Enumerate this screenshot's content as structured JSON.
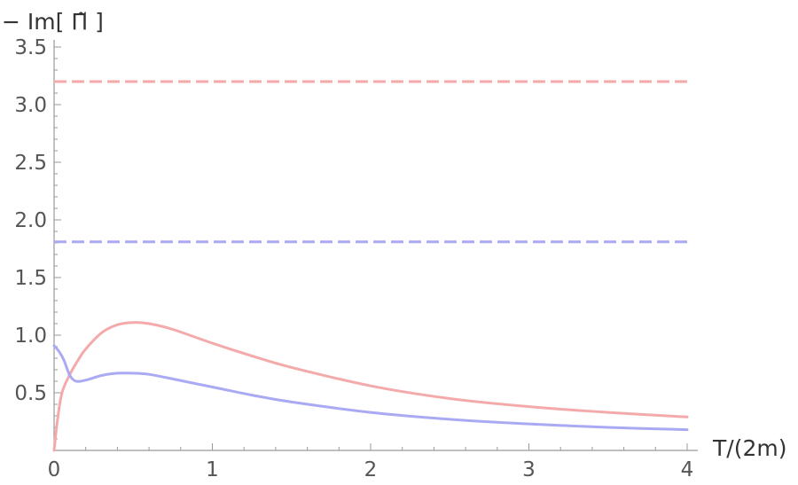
{
  "chart_data": {
    "type": "line",
    "title": "",
    "xlabel": "T/(2m)",
    "ylabel": "− Im[ Π̃ ]",
    "xlim": [
      0,
      4
    ],
    "ylim": [
      0.0,
      3.5
    ],
    "x_ticks": [
      "0",
      "1",
      "2",
      "3",
      "4"
    ],
    "y_ticks": [
      "0.5",
      "1.0",
      "1.5",
      "2.0",
      "2.5",
      "3.0",
      "3.5"
    ],
    "grid": false,
    "legend": "none",
    "colors": {
      "red": "#f4aaaa",
      "blue": "#aaaaf4",
      "axis": "#999999"
    },
    "series": [
      {
        "color": "red",
        "style": "dashed",
        "x": [
          0,
          4
        ],
        "y": [
          3.2,
          3.2
        ]
      },
      {
        "color": "blue",
        "style": "dashed",
        "x": [
          0,
          4
        ],
        "y": [
          1.81,
          1.81
        ]
      },
      {
        "color": "red",
        "style": "solid",
        "x": [
          0,
          0.02,
          0.05,
          0.1,
          0.15,
          0.2,
          0.3,
          0.4,
          0.5,
          0.6,
          0.75,
          1.0,
          1.25,
          1.5,
          2.0,
          2.5,
          3.0,
          3.5,
          4.0
        ],
        "y": [
          0.0,
          0.25,
          0.5,
          0.66,
          0.78,
          0.88,
          1.02,
          1.09,
          1.11,
          1.1,
          1.05,
          0.93,
          0.82,
          0.72,
          0.56,
          0.45,
          0.38,
          0.33,
          0.29
        ]
      },
      {
        "color": "blue",
        "style": "solid",
        "x": [
          0,
          0.03,
          0.06,
          0.1,
          0.14,
          0.2,
          0.3,
          0.4,
          0.5,
          0.6,
          0.75,
          1.0,
          1.25,
          1.5,
          2.0,
          2.5,
          3.0,
          3.5,
          4.0
        ],
        "y": [
          0.91,
          0.86,
          0.79,
          0.65,
          0.6,
          0.61,
          0.65,
          0.67,
          0.67,
          0.66,
          0.62,
          0.55,
          0.48,
          0.42,
          0.33,
          0.27,
          0.23,
          0.2,
          0.18
        ]
      }
    ]
  }
}
